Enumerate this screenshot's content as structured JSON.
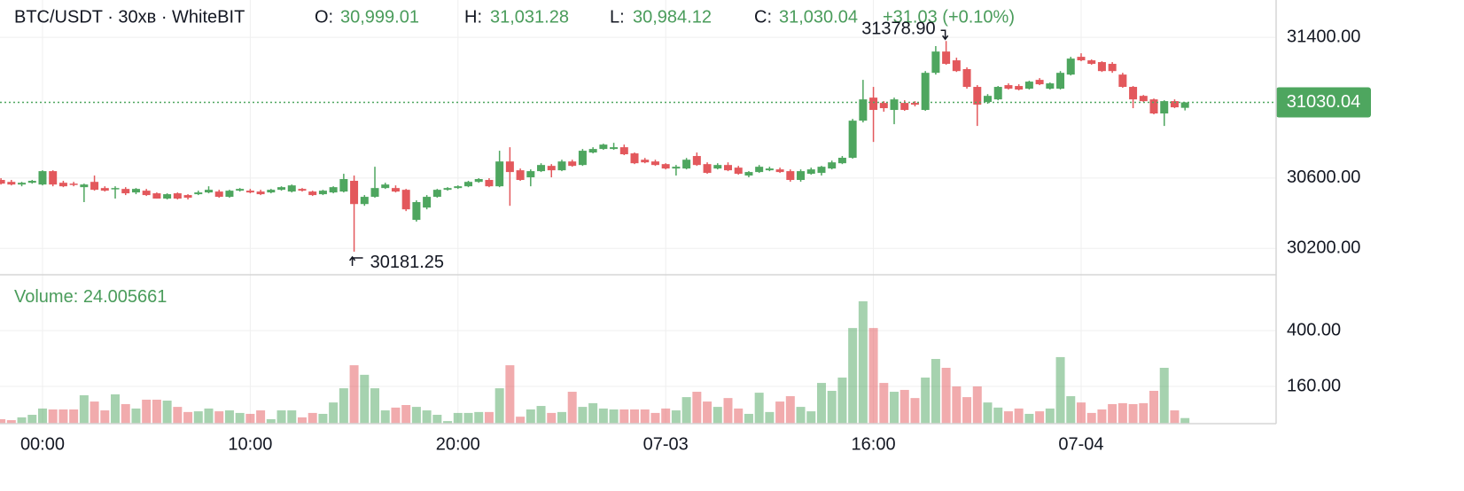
{
  "chart_data": [
    {
      "type": "candlestick",
      "title": "BTC/USDT · 30хв · WhiteBIT",
      "ohlc": [
        {
          "key": "O:",
          "value": "30,999.01"
        },
        {
          "key": "H:",
          "value": "31,031.28"
        },
        {
          "key": "L:",
          "value": "30,984.12"
        },
        {
          "key": "C:",
          "value": "31,030.04"
        }
      ],
      "change": "+31.03 (+0.10%)",
      "up_color": "#4ea65f",
      "down_color": "#e3585c",
      "categories": [
        null,
        null,
        null,
        null,
        "00:00",
        null,
        null,
        null,
        null,
        null,
        null,
        null,
        null,
        null,
        null,
        null,
        null,
        null,
        null,
        null,
        null,
        null,
        null,
        null,
        "10:00",
        null,
        null,
        null,
        null,
        null,
        null,
        null,
        null,
        null,
        null,
        null,
        null,
        null,
        null,
        null,
        null,
        null,
        null,
        null,
        "20:00",
        null,
        null,
        null,
        null,
        null,
        null,
        null,
        null,
        null,
        null,
        null,
        null,
        null,
        null,
        null,
        null,
        null,
        null,
        null,
        "07-03",
        null,
        null,
        null,
        null,
        null,
        null,
        null,
        null,
        null,
        null,
        null,
        null,
        null,
        null,
        null,
        null,
        null,
        null,
        null,
        "16:00",
        null,
        null,
        null,
        null,
        null,
        null,
        null,
        null,
        null,
        null,
        null,
        null,
        null,
        null,
        null,
        null,
        null,
        null,
        null,
        "07-04",
        null,
        null,
        null,
        null,
        null,
        null,
        null,
        null,
        null,
        null
      ],
      "open": [
        30589,
        30578,
        30563,
        30573,
        30563,
        30639,
        30573,
        30568,
        30548,
        30578,
        30543,
        30538,
        30538,
        30518,
        30528,
        30513,
        30483,
        30513,
        30503,
        30508,
        30518,
        30523,
        30493,
        30528,
        30528,
        30523,
        30518,
        30533,
        30523,
        30538,
        30523,
        30508,
        30518,
        30523,
        30584,
        30452,
        30493,
        30543,
        30543,
        30533,
        30362,
        30432,
        30493,
        30533,
        30543,
        30553,
        30578,
        30589,
        30553,
        30694,
        30644,
        30604,
        30639,
        30669,
        30644,
        30694,
        30674,
        30745,
        30765,
        30765,
        30775,
        30740,
        30704,
        30694,
        30679,
        30654,
        30654,
        30725,
        30679,
        30654,
        30674,
        30659,
        30614,
        30634,
        30644,
        30649,
        30639,
        30589,
        30624,
        30629,
        30654,
        30684,
        30715,
        30926,
        31057,
        31027,
        30987,
        31027,
        31027,
        30987,
        31198,
        31319,
        31269,
        31219,
        31118,
        31032,
        31047,
        31128,
        31123,
        31108,
        31158,
        31108,
        31108,
        31188,
        31289,
        31269,
        31259,
        31249,
        31188,
        31118,
        31067,
        31047,
        30967,
        31037,
        30999.01
      ],
      "high": [
        30599,
        30589,
        30578,
        30589,
        30644,
        30644,
        30584,
        30578,
        30568,
        30614,
        30553,
        30553,
        30548,
        30543,
        30538,
        30518,
        30513,
        30518,
        30508,
        30528,
        30553,
        30533,
        30533,
        30543,
        30538,
        30533,
        30538,
        30553,
        30563,
        30543,
        30528,
        30533,
        30553,
        30624,
        30614,
        30503,
        30664,
        30573,
        30558,
        30538,
        30473,
        30503,
        30538,
        30548,
        30558,
        30584,
        30599,
        30599,
        30755,
        30775,
        30654,
        30649,
        30684,
        30679,
        30704,
        30704,
        30765,
        30775,
        30795,
        30800,
        30790,
        30745,
        30714,
        30704,
        30684,
        30674,
        30714,
        30745,
        30689,
        30684,
        30689,
        30669,
        30639,
        30674,
        30664,
        30659,
        30649,
        30649,
        30659,
        30669,
        30699,
        30725,
        30936,
        31158,
        31118,
        31037,
        31057,
        31042,
        31037,
        31208,
        31350,
        31378.9,
        31284,
        31229,
        31128,
        31077,
        31123,
        31138,
        31133,
        31153,
        31168,
        31143,
        31208,
        31289,
        31309,
        31274,
        31264,
        31259,
        31198,
        31123,
        31072,
        31052,
        31042,
        31047,
        31031.28
      ],
      "low": [
        30563,
        30558,
        30553,
        30568,
        30558,
        30553,
        30548,
        30553,
        30463,
        30528,
        30523,
        30483,
        30503,
        30508,
        30498,
        30483,
        30478,
        30478,
        30478,
        30503,
        30513,
        30488,
        30488,
        30523,
        30513,
        30503,
        30513,
        30528,
        30518,
        30523,
        30498,
        30503,
        30513,
        30518,
        30181.25,
        30442,
        30488,
        30538,
        30518,
        30412,
        30352,
        30422,
        30488,
        30528,
        30538,
        30548,
        30573,
        30548,
        30548,
        30442,
        30584,
        30553,
        30634,
        30604,
        30639,
        30664,
        30669,
        30740,
        30760,
        30760,
        30730,
        30679,
        30684,
        30669,
        30649,
        30614,
        30649,
        30669,
        30624,
        30649,
        30639,
        30619,
        30604,
        30629,
        30639,
        30629,
        30579,
        30579,
        30619,
        30614,
        30649,
        30679,
        30710,
        30916,
        30805,
        30977,
        30906,
        30982,
        31007,
        30982,
        31188,
        31244,
        31203,
        31108,
        30896,
        31022,
        31042,
        31103,
        31098,
        31103,
        31128,
        31103,
        31103,
        31183,
        31264,
        31244,
        31203,
        31198,
        31113,
        30997,
        31032,
        30962,
        30896,
        30997,
        30984.12
      ],
      "close": [
        30568,
        30563,
        30573,
        30584,
        30639,
        30563,
        30553,
        30563,
        30563,
        30533,
        30528,
        30543,
        30513,
        30538,
        30503,
        30483,
        30508,
        30483,
        30488,
        30518,
        30533,
        30493,
        30528,
        30538,
        30518,
        30508,
        30533,
        30548,
        30558,
        30528,
        30503,
        30528,
        30548,
        30594,
        30452,
        30493,
        30543,
        30563,
        30523,
        30422,
        30463,
        30493,
        30533,
        30543,
        30553,
        30578,
        30594,
        30553,
        30694,
        30634,
        30589,
        30639,
        30674,
        30644,
        30694,
        30669,
        30755,
        30765,
        30790,
        30775,
        30735,
        30684,
        30689,
        30674,
        30654,
        30664,
        30704,
        30674,
        30629,
        30674,
        30644,
        30624,
        30634,
        30664,
        30654,
        30634,
        30589,
        30639,
        30649,
        30664,
        30689,
        30715,
        30926,
        31047,
        30987,
        30997,
        31047,
        30987,
        31017,
        31198,
        31319,
        31249,
        31208,
        31118,
        31017,
        31067,
        31118,
        31108,
        31103,
        31148,
        31133,
        31138,
        31198,
        31279,
        31269,
        31249,
        31208,
        31208,
        31118,
        31047,
        31037,
        30967,
        31037,
        31002,
        31030.04
      ],
      "ylim": [
        30050,
        31612
      ],
      "yticks": [
        {
          "value": 30200,
          "label": "30200.00"
        },
        {
          "value": 30600,
          "label": "30600.00"
        },
        {
          "value": 31400,
          "label": "31400.00"
        }
      ],
      "annotations": [
        {
          "label": "31378.90",
          "value": 31378.9
        },
        {
          "label": "30181.25",
          "value": 30181.25
        }
      ],
      "grid": true
    },
    {
      "type": "bar",
      "label": "Volume:",
      "opacity": 0.5,
      "values": [
        19,
        15,
        27,
        38,
        65,
        61,
        61,
        61,
        122,
        95,
        57,
        126,
        84,
        65,
        103,
        103,
        99,
        72,
        50,
        53,
        65,
        53,
        57,
        46,
        42,
        57,
        19,
        57,
        57,
        27,
        46,
        42,
        91,
        152,
        251,
        210,
        152,
        57,
        69,
        80,
        72,
        57,
        38,
        11,
        46,
        46,
        50,
        50,
        152,
        251,
        30,
        61,
        76,
        46,
        50,
        137,
        72,
        88,
        65,
        61,
        61,
        61,
        61,
        46,
        65,
        57,
        114,
        137,
        95,
        72,
        110,
        65,
        42,
        133,
        50,
        95,
        118,
        72,
        53,
        175,
        141,
        198,
        411,
        526,
        411,
        175,
        137,
        145,
        110,
        198,
        278,
        240,
        160,
        114,
        160,
        91,
        69,
        53,
        65,
        42,
        53,
        65,
        286,
        118,
        91,
        46,
        61,
        84,
        88,
        84,
        88,
        141,
        240,
        57,
        24.005661
      ],
      "ylim": [
        0,
        640
      ],
      "yticks": [
        {
          "value": 160,
          "label": "160.00"
        },
        {
          "value": 400,
          "label": "400.00"
        }
      ],
      "grid": true
    }
  ]
}
